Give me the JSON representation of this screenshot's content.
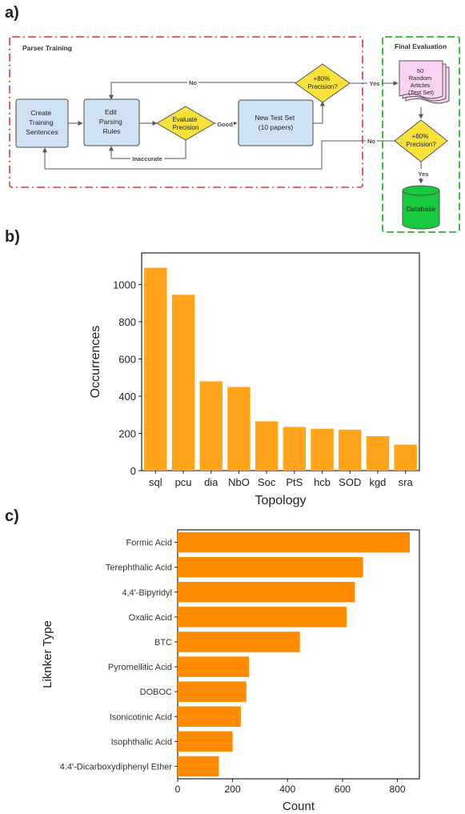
{
  "panel_labels": {
    "a": "a)",
    "b": "b)",
    "c": "c)"
  },
  "flowchart": {
    "parser_training_title": "Parser Training",
    "final_evaluation_title": "Final Evaluation",
    "nodes": {
      "create": [
        "Create",
        "Training",
        "Sentences"
      ],
      "edit": [
        "Edit",
        "Parsing",
        "Rules"
      ],
      "evaluate": [
        "Evaluate",
        "Precision"
      ],
      "newtest": [
        "New Test Set",
        "(10 papers)"
      ],
      "prec1": [
        "+80%",
        "Precision?"
      ],
      "articles": [
        "50",
        "Random",
        "Articles",
        "(Test Set)"
      ],
      "prec2": [
        "+80%",
        "Precision?"
      ],
      "database": [
        "Database"
      ]
    },
    "edge_labels": {
      "no_top": "No",
      "yes_right": "Yes",
      "good": "Good",
      "inaccurate": "Inaccurate",
      "no_bottom": "No",
      "yes_down": "Yes"
    },
    "colors": {
      "process_fill": "#cfe2f3",
      "process_stroke": "#4a4a4a",
      "decision_fill": "#f7e23b",
      "document_fill": "#f9d3f2",
      "database_fill": "#18c93f",
      "red_border": "#e8323a",
      "green_border": "#2eb82e"
    }
  },
  "chart_data": [
    {
      "type": "bar",
      "orientation": "vertical",
      "categories": [
        "sql",
        "pcu",
        "dia",
        "NbO",
        "Soc",
        "PtS",
        "hcb",
        "SOD",
        "kgd",
        "sra"
      ],
      "values": [
        1090,
        945,
        480,
        450,
        265,
        235,
        225,
        220,
        185,
        140
      ],
      "xlabel": "Topology",
      "ylabel": "Occurrences",
      "ylim": [
        0,
        1170
      ],
      "yticks": [
        0,
        200,
        400,
        600,
        800,
        1000
      ],
      "bar_color": "#ffa41b",
      "grid": false
    },
    {
      "type": "bar",
      "orientation": "horizontal",
      "categories": [
        "Formic Acid",
        "Terephthalic Acid",
        "4,4'-Bipyridyl",
        "Oxalic Acid",
        "BTC",
        "Pyromellitic Acid",
        "DOBOC",
        "Isonicotinic Acid",
        "Isophthalic Acid",
        "4.4'-Dicarboxydiphenyl Ether"
      ],
      "values": [
        845,
        675,
        645,
        615,
        445,
        260,
        250,
        230,
        200,
        150
      ],
      "xlabel": "Count",
      "ylabel": "Liknker Type",
      "xlim": [
        0,
        880
      ],
      "xticks": [
        0,
        200,
        400,
        600,
        800
      ],
      "bar_color": "#ff8c00",
      "grid": false
    }
  ]
}
